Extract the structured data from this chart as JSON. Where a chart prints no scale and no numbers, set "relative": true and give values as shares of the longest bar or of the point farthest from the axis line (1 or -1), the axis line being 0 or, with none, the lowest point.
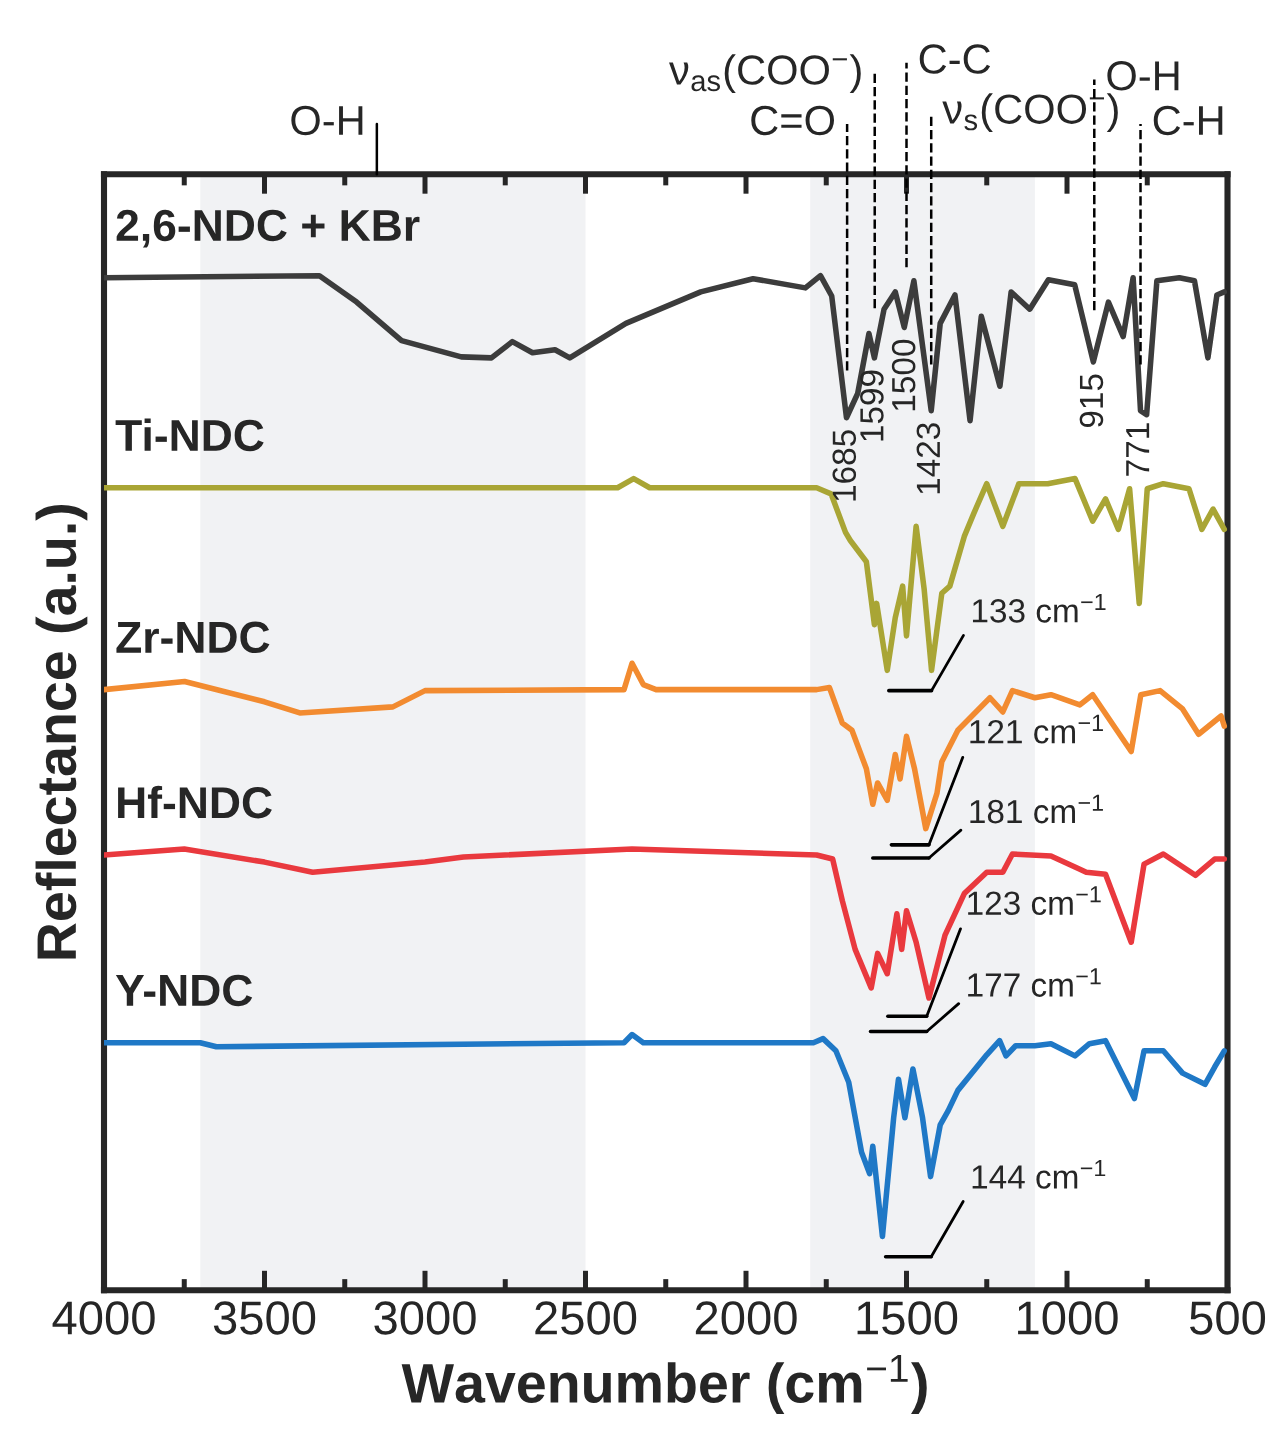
{
  "chart_data": {
    "type": "line",
    "xlabel": "Wavenumber (cm$^{−1}$)",
    "ylabel": "Reflectance (a.u.)",
    "relative": true,
    "xlim": [
      4000,
      500
    ],
    "xticks": [
      4000,
      3500,
      3000,
      2500,
      2000,
      1500,
      1000,
      500
    ],
    "bands": [
      {
        "axis": "x",
        "from": 3700,
        "to": 2500,
        "color": "#f1f2f4"
      },
      {
        "axis": "x",
        "from": 1800,
        "to": 1100,
        "color": "#f1f2f4"
      }
    ],
    "ref_lines": [
      {
        "axis": "x",
        "value": 3150,
        "label": "O-H",
        "line_style": "solid"
      },
      {
        "axis": "x",
        "value": 1685,
        "label": "C=O",
        "line_style": "dashed"
      },
      {
        "axis": "x",
        "value": 1599,
        "label": "ν$_{as}$(COO$^{−}$)",
        "line_style": "dashed"
      },
      {
        "axis": "x",
        "value": 1500,
        "label": "C-C",
        "line_style": "dashed"
      },
      {
        "axis": "x",
        "value": 1423,
        "label": "ν$_{s}$(COO$^{−}$)",
        "line_style": "dashed"
      },
      {
        "axis": "x",
        "value": 915,
        "label": "O-H",
        "line_style": "dashed"
      },
      {
        "axis": "x",
        "value": 771,
        "label": "C-H",
        "line_style": "dashed"
      }
    ],
    "annotations": [
      {
        "text": "1685",
        "x": 1685,
        "y": 0.86
      },
      {
        "text": "1599",
        "x": 1599,
        "y": 0.919
      },
      {
        "text": "1500",
        "x": 1500,
        "y": 0.949
      },
      {
        "text": "1423",
        "x": 1423,
        "y": 0.867
      },
      {
        "text": "915",
        "x": 915,
        "y": 0.915
      },
      {
        "text": "771",
        "x": 771,
        "y": 0.867
      }
    ],
    "series": [
      {
        "name": "2,6-NDC + KBr",
        "color": "#3c3c3c",
        "x": [
          4000,
          3329,
          3213,
          3073,
          2887,
          2793,
          2728,
          2665,
          2595,
          2549,
          2374,
          2141,
          1978,
          1815,
          1768,
          1733,
          1687,
          1652,
          1617,
          1600,
          1570,
          1535,
          1507,
          1477,
          1423,
          1395,
          1349,
          1302,
          1267,
          1209,
          1174,
          1116,
          1058,
          976,
          918,
          871,
          825,
          794,
          771,
          752,
          720,
          650,
          603,
          561,
          533,
          510
        ],
        "values": [
          0.998,
          1.0,
          0.974,
          0.936,
          0.92,
          0.919,
          0.935,
          0.924,
          0.927,
          0.919,
          0.953,
          0.984,
          0.997,
          0.988,
          1.0,
          0.98,
          0.86,
          0.884,
          0.943,
          0.919,
          0.967,
          0.984,
          0.949,
          0.995,
          0.867,
          0.953,
          0.981,
          0.857,
          0.96,
          0.891,
          0.984,
          0.967,
          0.996,
          0.991,
          0.915,
          0.974,
          0.94,
          0.998,
          0.867,
          0.863,
          0.995,
          0.998,
          0.995,
          0.919,
          0.981,
          0.984
        ]
      },
      {
        "name": "Ti-NDC",
        "color": "#a9a535",
        "x": [
          4000,
          3500,
          3000,
          2400,
          2350,
          2300,
          1780,
          1735,
          1690,
          1675,
          1625,
          1600,
          1593,
          1560,
          1535,
          1512,
          1500,
          1470,
          1445,
          1422,
          1390,
          1365,
          1320,
          1290,
          1250,
          1200,
          1150,
          1060,
          975,
          920,
          880,
          840,
          805,
          775,
          750,
          700,
          620,
          580,
          545,
          510
        ],
        "values": [
          0.791,
          0.791,
          0.791,
          0.791,
          0.8,
          0.791,
          0.791,
          0.785,
          0.747,
          0.739,
          0.718,
          0.656,
          0.677,
          0.611,
          0.663,
          0.694,
          0.645,
          0.753,
          0.691,
          0.611,
          0.687,
          0.694,
          0.743,
          0.766,
          0.795,
          0.753,
          0.795,
          0.795,
          0.8,
          0.758,
          0.78,
          0.75,
          0.79,
          0.677,
          0.79,
          0.795,
          0.79,
          0.75,
          0.77,
          0.75
        ]
      },
      {
        "name": "Zr-NDC",
        "color": "#f28b30",
        "x": [
          4000,
          3749,
          3500,
          3390,
          3100,
          3000,
          2380,
          2355,
          2320,
          2280,
          1780,
          1740,
          1700,
          1670,
          1625,
          1605,
          1590,
          1560,
          1535,
          1520,
          1500,
          1475,
          1440,
          1405,
          1390,
          1340,
          1240,
          1200,
          1170,
          1100,
          1050,
          960,
          920,
          800,
          770,
          710,
          640,
          590,
          520,
          510
        ],
        "values": [
          0.592,
          0.6,
          0.58,
          0.569,
          0.575,
          0.591,
          0.592,
          0.618,
          0.597,
          0.592,
          0.592,
          0.594,
          0.559,
          0.552,
          0.514,
          0.479,
          0.5,
          0.483,
          0.528,
          0.504,
          0.546,
          0.514,
          0.455,
          0.49,
          0.521,
          0.552,
          0.584,
          0.57,
          0.591,
          0.584,
          0.587,
          0.577,
          0.587,
          0.531,
          0.587,
          0.591,
          0.573,
          0.548,
          0.566,
          0.556
        ]
      },
      {
        "name": "Hf-NDC",
        "color": "#e9393e",
        "x": [
          4000,
          3750,
          3500,
          3350,
          3000,
          2880,
          2355,
          1780,
          1730,
          1700,
          1660,
          1610,
          1590,
          1560,
          1530,
          1515,
          1500,
          1470,
          1430,
          1380,
          1320,
          1250,
          1200,
          1170,
          1050,
          960,
          940,
          880,
          800,
          760,
          700,
          600,
          540,
          510
        ],
        "values": [
          0.429,
          0.435,
          0.422,
          0.412,
          0.422,
          0.427,
          0.435,
          0.429,
          0.425,
          0.384,
          0.336,
          0.298,
          0.332,
          0.312,
          0.371,
          0.336,
          0.374,
          0.343,
          0.288,
          0.35,
          0.391,
          0.412,
          0.412,
          0.43,
          0.428,
          0.415,
          0.412,
          0.41,
          0.343,
          0.42,
          0.43,
          0.409,
          0.425,
          0.425
        ]
      },
      {
        "name": "Y-NDC",
        "color": "#1f78c6",
        "x": [
          4000,
          3700,
          3650,
          2380,
          2355,
          2320,
          1790,
          1760,
          1720,
          1680,
          1640,
          1615,
          1605,
          1575,
          1540,
          1525,
          1505,
          1480,
          1450,
          1425,
          1395,
          1370,
          1340,
          1250,
          1210,
          1190,
          1160,
          1100,
          1050,
          975,
          930,
          880,
          790,
          760,
          700,
          640,
          570,
          540,
          510
        ],
        "values": [
          0.244,
          0.244,
          0.24,
          0.244,
          0.252,
          0.244,
          0.244,
          0.248,
          0.236,
          0.205,
          0.136,
          0.115,
          0.142,
          0.053,
          0.17,
          0.208,
          0.17,
          0.218,
          0.17,
          0.112,
          0.163,
          0.177,
          0.197,
          0.232,
          0.246,
          0.231,
          0.241,
          0.241,
          0.243,
          0.231,
          0.243,
          0.246,
          0.189,
          0.236,
          0.236,
          0.214,
          0.203,
          0.22,
          0.236
        ]
      },
      {
        "name": "133 cm$^{−1}$",
        "color": "#000000",
        "x": [
          1555,
          1422
        ],
        "values": [
          0.591,
          0.591
        ]
      },
      {
        "name": "121 cm$^{−1}$",
        "color": "#000000",
        "x": [
          1547,
          1430
        ],
        "values": [
          0.439,
          0.439
        ]
      },
      {
        "name": "181 cm$^{−1}$",
        "color": "#000000",
        "x": [
          1605,
          1430
        ],
        "values": [
          0.426,
          0.426
        ]
      },
      {
        "name": "123 cm$^{−1}$",
        "color": "#000000",
        "x": [
          1558,
          1437
        ],
        "values": [
          0.27,
          0.27
        ]
      },
      {
        "name": "177 cm$^{−1}$",
        "color": "#000000",
        "x": [
          1612,
          1437
        ],
        "values": [
          0.255,
          0.255
        ]
      },
      {
        "name": "144 cm$^{−1}$",
        "color": "#000000",
        "x": [
          1565,
          1423
        ],
        "values": [
          0.033,
          0.033
        ]
      }
    ]
  }
}
